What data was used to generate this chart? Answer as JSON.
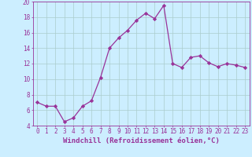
{
  "x": [
    0,
    1,
    2,
    3,
    4,
    5,
    6,
    7,
    8,
    9,
    10,
    11,
    12,
    13,
    14,
    15,
    16,
    17,
    18,
    19,
    20,
    21,
    22,
    23
  ],
  "y": [
    7.0,
    6.5,
    6.5,
    4.5,
    5.0,
    6.5,
    7.2,
    10.2,
    14.0,
    15.3,
    16.3,
    17.6,
    18.5,
    17.8,
    19.5,
    12.0,
    11.5,
    12.8,
    13.0,
    12.1,
    11.6,
    12.0,
    11.8,
    11.5
  ],
  "line_color": "#993399",
  "marker": "D",
  "marker_size": 2.2,
  "bg_color": "#cceeff",
  "grid_color": "#aacccc",
  "xlabel": "Windchill (Refroidissement éolien,°C)",
  "ylim": [
    4,
    20
  ],
  "xlim_min": -0.5,
  "xlim_max": 23.5,
  "yticks": [
    4,
    6,
    8,
    10,
    12,
    14,
    16,
    18,
    20
  ],
  "xticks": [
    0,
    1,
    2,
    3,
    4,
    5,
    6,
    7,
    8,
    9,
    10,
    11,
    12,
    13,
    14,
    15,
    16,
    17,
    18,
    19,
    20,
    21,
    22,
    23
  ],
  "label_color": "#993399",
  "tick_fontsize": 5.5,
  "xlabel_fontsize": 6.5,
  "linewidth": 0.9
}
